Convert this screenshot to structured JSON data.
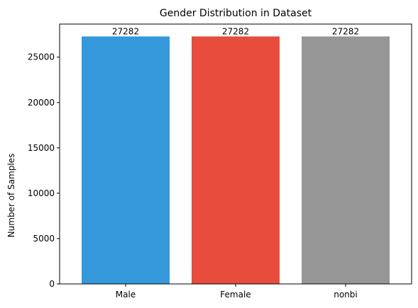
{
  "chart_data": {
    "type": "bar",
    "title": "Gender Distribution in Dataset",
    "xlabel": "",
    "ylabel": "Number of Samples",
    "categories": [
      "Male",
      "Female",
      "nonbi"
    ],
    "values": [
      27282,
      27282,
      27282
    ],
    "data_labels": [
      "27282",
      "27282",
      "27282"
    ],
    "colors": [
      "#3498db",
      "#e74c3c",
      "#969696"
    ],
    "ylim": [
      0,
      28646
    ],
    "yticks": [
      0,
      5000,
      10000,
      15000,
      20000,
      25000
    ],
    "grid": false,
    "legend": "none"
  }
}
